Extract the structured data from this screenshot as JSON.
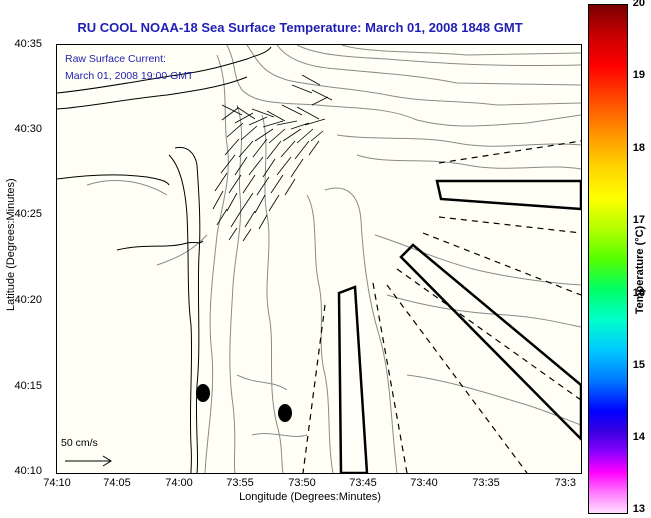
{
  "title": "RU COOL  NOAA-18  Sea Surface Temperature:  March 01, 2008 1848 GMT",
  "overlay": {
    "line1": "Raw Surface Current:",
    "line2": "March 01, 2008 19:00 GMT"
  },
  "scale_label": "50 cm/s",
  "axes": {
    "xlabel": "Longitude (Degrees:Minutes)",
    "ylabel": "Latitude (Degrees:Minutes)",
    "xticks": [
      "74:10",
      "74:05",
      "74:00",
      "73:55",
      "73:50",
      "73:45",
      "73:40",
      "73:35",
      "73:3"
    ],
    "yticks": [
      "40:35",
      "40:30",
      "40:25",
      "40:20",
      "40:15",
      "40:10"
    ]
  },
  "colorbar": {
    "label": "Temperature (°C)",
    "ticks": [
      "20",
      "19",
      "18",
      "17",
      "16",
      "15",
      "14",
      "13"
    ],
    "min": 13,
    "max": 20
  },
  "colors": {
    "title": "#1f1fb4",
    "land": "#fffff6",
    "coastline": "#000000",
    "bathymetry": "#8a8a8a"
  }
}
